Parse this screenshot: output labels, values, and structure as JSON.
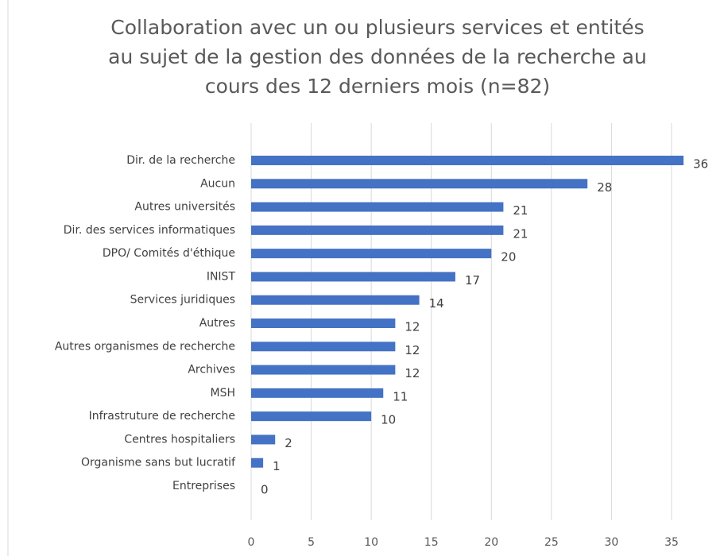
{
  "chart_data": {
    "type": "bar",
    "orientation": "horizontal",
    "title": [
      "Collaboration avec un ou plusieurs services et entités",
      "au sujet de la gestion des données de la recherche au",
      "cours des 12 derniers mois (n=82)"
    ],
    "categories": [
      "Dir. de la recherche",
      "Aucun",
      "Autres universités",
      "Dir. des services informatiques",
      "DPO/ Comités d'éthique",
      "INIST",
      "Services juridiques",
      "Autres",
      "Autres organismes de recherche",
      "Archives",
      "MSH",
      "Infrastruture de recherche",
      "Centres hospitaliers",
      "Organisme sans but lucratif",
      "Entreprises"
    ],
    "values": [
      36,
      28,
      21,
      21,
      20,
      17,
      14,
      12,
      12,
      12,
      11,
      10,
      2,
      1,
      0
    ],
    "color": "#4472c4",
    "xlim": [
      0,
      40
    ],
    "xticks": [
      0,
      5,
      10,
      15,
      20,
      25,
      30,
      35,
      40
    ],
    "grid": true
  }
}
